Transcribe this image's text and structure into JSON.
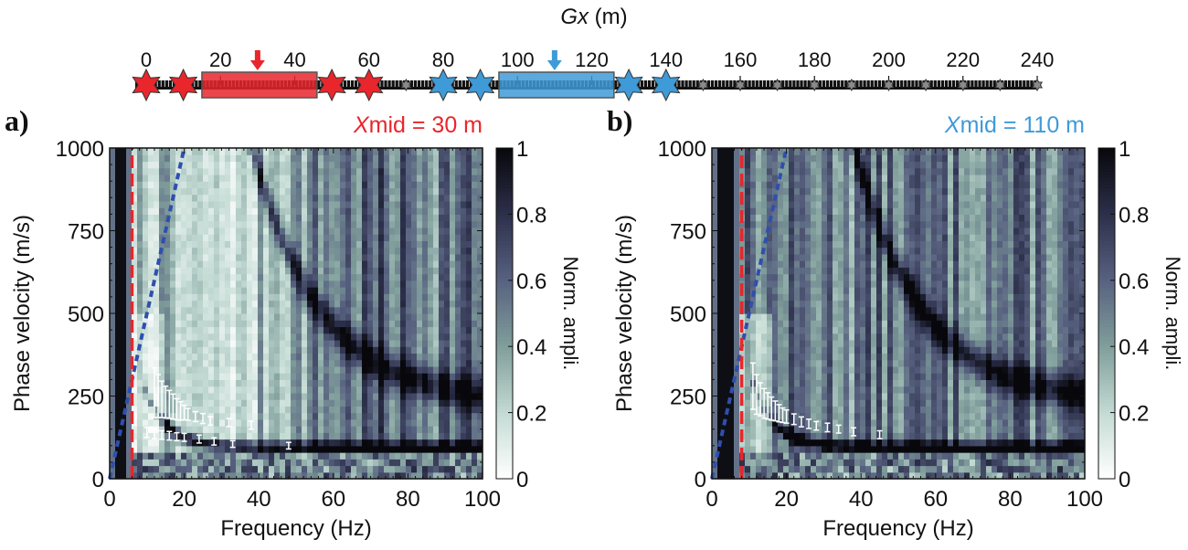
{
  "colors": {
    "red": "#e8262b",
    "blue": "#3f9ad8",
    "gray": "#808080",
    "pick": "#ffffff",
    "curve_blue": "#2f4fae"
  },
  "strip": {
    "title_italic": "Gx",
    "title_unit": " (m)",
    "ticks": [
      0,
      20,
      40,
      60,
      80,
      100,
      120,
      140,
      160,
      180,
      200,
      220,
      240
    ],
    "range_m": [
      0,
      240
    ],
    "red_sources_m": [
      0,
      10,
      50,
      60
    ],
    "blue_sources_m": [
      80,
      90,
      130,
      140
    ],
    "gray_sources_m": [
      70,
      150,
      160,
      170,
      180,
      190,
      200,
      210,
      220,
      230,
      240
    ],
    "red_window_m": [
      15,
      46
    ],
    "blue_window_m": [
      95,
      126
    ],
    "red_arrow_m": 30,
    "blue_arrow_m": 110
  },
  "chart_data": [
    {
      "type": "heatmap",
      "panel_label": "a)",
      "title_italic": "X",
      "title_rest": "mid = 30 m",
      "title_color": "#e8262b",
      "xlabel": "Frequency (Hz)",
      "ylabel": "Phase velocity (m/s)",
      "xlim": [
        0,
        100
      ],
      "ylim": [
        0,
        1000
      ],
      "xticks": [
        0,
        20,
        40,
        60,
        80,
        100
      ],
      "yticks": [
        0,
        250,
        500,
        750,
        1000
      ],
      "colorbar": {
        "label": "Norm. ampli.",
        "ticks": [
          "0",
          "0.2",
          "0.4",
          "0.6",
          "0.8",
          "1"
        ],
        "range": [
          0,
          1
        ]
      },
      "cutoff_frequency_hz": 6,
      "wavelength_line_slope": 50,
      "fundamental_mode_center": [
        [
          10,
          140
        ],
        [
          12,
          135
        ],
        [
          14,
          132
        ],
        [
          16,
          130
        ],
        [
          18,
          127
        ],
        [
          20,
          125
        ],
        [
          24,
          120
        ],
        [
          28,
          113
        ],
        [
          33,
          105
        ],
        [
          48,
          100
        ]
      ],
      "fundamental_mode_error": [
        [
          10,
          15
        ],
        [
          12,
          14
        ],
        [
          14,
          13
        ],
        [
          16,
          13
        ],
        [
          18,
          12
        ],
        [
          20,
          12
        ],
        [
          24,
          12
        ],
        [
          28,
          11
        ],
        [
          33,
          10
        ],
        [
          48,
          10
        ]
      ],
      "higher_mode_center": [
        [
          12,
          260
        ],
        [
          13,
          250
        ],
        [
          14,
          240
        ],
        [
          15,
          232
        ],
        [
          16,
          225
        ],
        [
          17,
          218
        ],
        [
          18,
          210
        ],
        [
          19,
          205
        ],
        [
          20,
          200
        ],
        [
          21,
          195
        ],
        [
          23,
          188
        ],
        [
          25,
          182
        ],
        [
          27,
          175
        ],
        [
          32,
          170
        ],
        [
          38,
          162
        ]
      ],
      "higher_mode_error": [
        [
          12,
          75
        ],
        [
          13,
          65
        ],
        [
          14,
          55
        ],
        [
          15,
          48
        ],
        [
          16,
          42
        ],
        [
          17,
          38
        ],
        [
          18,
          32
        ],
        [
          19,
          28
        ],
        [
          20,
          22
        ],
        [
          21,
          18
        ],
        [
          23,
          15
        ],
        [
          25,
          15
        ],
        [
          27,
          13
        ],
        [
          32,
          12
        ],
        [
          38,
          12
        ]
      ],
      "seed": 7
    },
    {
      "type": "heatmap",
      "panel_label": "b)",
      "title_italic": "X",
      "title_rest": "mid = 110 m",
      "title_color": "#3f9ad8",
      "xlabel": "Frequency (Hz)",
      "ylabel": "Phase velocity (m/s)",
      "xlim": [
        0,
        100
      ],
      "ylim": [
        0,
        1000
      ],
      "xticks": [
        0,
        20,
        40,
        60,
        80,
        100
      ],
      "yticks": [
        0,
        250,
        500,
        750,
        1000
      ],
      "colorbar": {
        "label": "Norm. ampli.",
        "ticks": [
          "0",
          "0.2",
          "0.4",
          "0.6",
          "0.8",
          "1"
        ],
        "range": [
          0,
          1
        ]
      },
      "cutoff_frequency_hz": 8,
      "wavelength_line_slope": 50,
      "fundamental_mode_center": [
        [
          11,
          280
        ],
        [
          12,
          255
        ],
        [
          13,
          240
        ],
        [
          14,
          228
        ],
        [
          15,
          220
        ],
        [
          16,
          212
        ],
        [
          17,
          205
        ],
        [
          18,
          198
        ],
        [
          19,
          192
        ],
        [
          20,
          188
        ],
        [
          22,
          180
        ],
        [
          24,
          172
        ],
        [
          26,
          166
        ],
        [
          28,
          160
        ],
        [
          31,
          155
        ],
        [
          34,
          150
        ],
        [
          38,
          142
        ],
        [
          45,
          133
        ]
      ],
      "fundamental_mode_error": [
        [
          11,
          70
        ],
        [
          12,
          60
        ],
        [
          13,
          50
        ],
        [
          14,
          45
        ],
        [
          15,
          40
        ],
        [
          16,
          35
        ],
        [
          17,
          30
        ],
        [
          18,
          26
        ],
        [
          19,
          22
        ],
        [
          20,
          20
        ],
        [
          22,
          16
        ],
        [
          24,
          15
        ],
        [
          26,
          14
        ],
        [
          28,
          13
        ],
        [
          31,
          13
        ],
        [
          34,
          12
        ],
        [
          38,
          12
        ],
        [
          45,
          12
        ]
      ],
      "higher_mode_center": [],
      "higher_mode_error": [],
      "seed": 13
    }
  ]
}
